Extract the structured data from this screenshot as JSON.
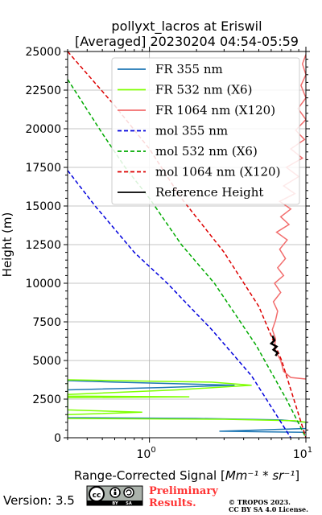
{
  "chart_data": {
    "type": "line",
    "title_line1": "pollyxt_lacros at Eriswil",
    "title_line2": "[Averaged] 20230204 04:54-05:59",
    "xlabel_prefix": "Range-Corrected Signal [",
    "xlabel_unit": "Mm⁻¹ * sr⁻¹",
    "xlabel_suffix": "]",
    "ylabel": "Height (m)",
    "x_scale": "log",
    "xlim": [
      0.3,
      10
    ],
    "ylim": [
      0,
      25000
    ],
    "grid": true,
    "legend_position": "upper-right",
    "x_ticks": [
      {
        "value": 1,
        "base": "10",
        "exp": "0"
      },
      {
        "value": 10,
        "base": "10",
        "exp": "1"
      }
    ],
    "y_ticks": [
      {
        "value": 0,
        "label": "0"
      },
      {
        "value": 2500,
        "label": "2500"
      },
      {
        "value": 5000,
        "label": "5000"
      },
      {
        "value": 7500,
        "label": "7500"
      },
      {
        "value": 10000,
        "label": "10000"
      },
      {
        "value": 12500,
        "label": "12500"
      },
      {
        "value": 15000,
        "label": "15000"
      },
      {
        "value": 17500,
        "label": "17500"
      },
      {
        "value": 20000,
        "label": "20000"
      },
      {
        "value": 22500,
        "label": "22500"
      },
      {
        "value": 25000,
        "label": "25000"
      }
    ],
    "series": [
      {
        "name": "FR 355 nm",
        "color": "#1f77b4",
        "dash": "solid",
        "points": [
          [
            0.3,
            3100
          ],
          [
            1.2,
            3250
          ],
          [
            3.5,
            3400
          ],
          [
            0.6,
            3600
          ],
          [
            0.3,
            3700
          ],
          [
            0.3,
            1300
          ],
          [
            2.0,
            1250
          ],
          [
            7.0,
            1150
          ],
          [
            10,
            1000
          ],
          [
            10,
            600
          ],
          [
            5.0,
            500
          ],
          [
            2.8,
            420
          ],
          [
            6.0,
            380
          ],
          [
            10,
            350
          ]
        ]
      },
      {
        "name": "FR 532 nm (X6)",
        "color": "#7fff00",
        "dash": "solid",
        "points": [
          [
            0.3,
            2800
          ],
          [
            1.5,
            3100
          ],
          [
            4.5,
            3400
          ],
          [
            2.5,
            3600
          ],
          [
            0.3,
            3750
          ],
          [
            0.3,
            2600
          ],
          [
            1.8,
            2650
          ],
          [
            0.3,
            2700
          ],
          [
            0.3,
            1800
          ],
          [
            0.9,
            1650
          ],
          [
            0.3,
            1500
          ],
          [
            0.3,
            1250
          ],
          [
            3.0,
            1200
          ],
          [
            8.5,
            1100
          ],
          [
            10,
            1000
          ]
        ]
      },
      {
        "name": "FR 1064 nm (X120)",
        "color": "#f26d6d",
        "dash": "solid",
        "points": [
          [
            10,
            3800
          ],
          [
            8,
            3900
          ],
          [
            7.2,
            4300
          ],
          [
            6.9,
            5000
          ],
          [
            6.5,
            5500
          ],
          [
            6.3,
            5900
          ],
          [
            6.4,
            6400
          ],
          [
            6.1,
            7000
          ],
          [
            6.4,
            7600
          ],
          [
            6.6,
            8200
          ],
          [
            6.2,
            8800
          ],
          [
            6.9,
            9400
          ],
          [
            6.3,
            10000
          ],
          [
            7.2,
            10500
          ],
          [
            6.6,
            11000
          ],
          [
            7.4,
            11600
          ],
          [
            6.8,
            12200
          ],
          [
            7.6,
            12800
          ],
          [
            6.5,
            13300
          ],
          [
            7.8,
            13800
          ],
          [
            6.9,
            14300
          ],
          [
            8.0,
            14800
          ],
          [
            6.8,
            15300
          ],
          [
            8.5,
            15800
          ],
          [
            7.2,
            16300
          ],
          [
            9.0,
            16900
          ],
          [
            7.5,
            17500
          ],
          [
            9.5,
            18100
          ],
          [
            8.0,
            18700
          ],
          [
            9.8,
            19300
          ],
          [
            8.6,
            19900
          ],
          [
            10,
            20600
          ],
          [
            8.9,
            21300
          ],
          [
            10,
            22000
          ],
          [
            9.3,
            22800
          ],
          [
            10,
            23500
          ],
          [
            9.5,
            24200
          ],
          [
            10,
            24800
          ]
        ]
      },
      {
        "name": "mol 355 nm",
        "color": "#0000dd",
        "dash": "dashed",
        "points": [
          [
            0.3,
            17300
          ],
          [
            0.45,
            15000
          ],
          [
            0.6,
            13500
          ],
          [
            0.8,
            12000
          ],
          [
            1.3,
            10000
          ],
          [
            2.5,
            7000
          ],
          [
            4.5,
            4000
          ],
          [
            8.0,
            0
          ]
        ]
      },
      {
        "name": "mol 532 nm (X6)",
        "color": "#00aa00",
        "dash": "dashed",
        "points": [
          [
            0.3,
            23200
          ],
          [
            0.5,
            19700
          ],
          [
            0.7,
            17500
          ],
          [
            1.0,
            15500
          ],
          [
            1.6,
            12500
          ],
          [
            2.6,
            10000
          ],
          [
            4.8,
            6000
          ],
          [
            7.5,
            2500
          ],
          [
            10,
            0
          ]
        ]
      },
      {
        "name": "mol 1064 nm (X120)",
        "color": "#dd0000",
        "dash": "dashed",
        "points": [
          [
            0.3,
            25000
          ],
          [
            0.6,
            21500
          ],
          [
            1.0,
            18700
          ],
          [
            1.6,
            15500
          ],
          [
            3.0,
            12000
          ],
          [
            5.0,
            8500
          ],
          [
            7.0,
            5000
          ],
          [
            10,
            0
          ]
        ]
      },
      {
        "name": "Reference Height",
        "color": "#000000",
        "dash": "solid",
        "points": [
          [
            6.1,
            6600
          ],
          [
            6.3,
            6300
          ],
          [
            6.0,
            6100
          ],
          [
            6.5,
            5900
          ],
          [
            6.2,
            5700
          ],
          [
            6.6,
            5500
          ],
          [
            6.4,
            5300
          ]
        ]
      }
    ]
  },
  "footer": {
    "version": "Version: 3.5",
    "preliminary_line1": "Preliminary",
    "preliminary_line2": "Results.",
    "copyright_line1": "© TROPOS 2023.",
    "copyright_line2": "CC BY SA 4.0 License."
  },
  "cc_badge": {
    "icons": [
      "cc-icon",
      "by-icon",
      "sa-icon"
    ],
    "labels": [
      "BY",
      "SA"
    ]
  }
}
